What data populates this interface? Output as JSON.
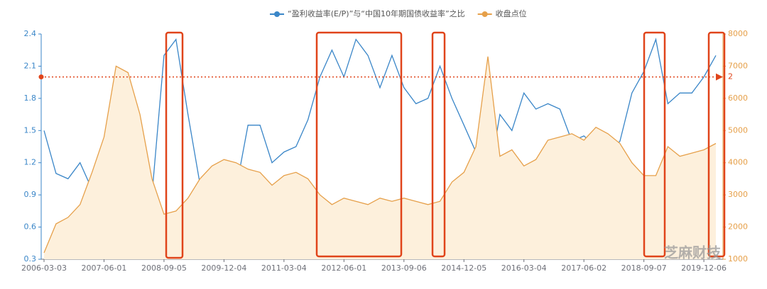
{
  "chart_data": {
    "type": "line",
    "categories": [
      "2006-03-03",
      null,
      null,
      null,
      null,
      "2007-06-01",
      null,
      null,
      null,
      null,
      "2008-09-05",
      null,
      null,
      null,
      null,
      "2009-12-04",
      null,
      null,
      null,
      null,
      "2011-03-04",
      null,
      null,
      null,
      null,
      "2012-06-01",
      null,
      null,
      null,
      null,
      "2013-09-06",
      null,
      null,
      null,
      null,
      "2014-12-05",
      null,
      null,
      null,
      null,
      "2016-03-04",
      null,
      null,
      null,
      null,
      "2017-06-02",
      null,
      null,
      null,
      null,
      "2018-09-07",
      null,
      null,
      null,
      null,
      "2019-12-06",
      null
    ],
    "series": [
      {
        "name": "“盈利收益率(E/P)”与“中国10年期国债收益率”之比",
        "color": "#3a86c8",
        "values": [
          1.5,
          1.1,
          1.05,
          1.2,
          0.95,
          0.75,
          0.55,
          0.45,
          0.5,
          0.9,
          2.2,
          2.35,
          1.65,
          1.0,
          0.8,
          0.85,
          0.95,
          1.55,
          1.55,
          1.2,
          1.3,
          1.35,
          1.6,
          2.0,
          2.25,
          2.0,
          2.35,
          2.2,
          1.9,
          2.2,
          1.9,
          1.75,
          1.8,
          2.1,
          1.8,
          1.55,
          1.3,
          1.0,
          1.65,
          1.5,
          1.85,
          1.7,
          1.75,
          1.7,
          1.4,
          1.45,
          1.35,
          1.3,
          1.4,
          1.85,
          2.05,
          2.35,
          1.75,
          1.85,
          1.85,
          2.0,
          2.2
        ]
      },
      {
        "name": "收盘点位",
        "color": "#e6a04a",
        "axis": "y2",
        "fill": "#fdf0dc",
        "values": [
          1200,
          2100,
          2300,
          2700,
          3700,
          4800,
          7000,
          6800,
          5500,
          3500,
          2400,
          2500,
          2900,
          3500,
          3900,
          4100,
          4000,
          3800,
          3700,
          3300,
          3600,
          3700,
          3500,
          3000,
          2700,
          2900,
          2800,
          2700,
          2900,
          2800,
          2900,
          2800,
          2700,
          2800,
          3400,
          3700,
          4500,
          7300,
          4200,
          4400,
          3900,
          4100,
          4700,
          4800,
          4900,
          4700,
          5100,
          4900,
          4600,
          4000,
          3600,
          3600,
          4500,
          4200,
          4300,
          4400,
          4600
        ]
      }
    ],
    "ylim": [
      0.3,
      2.4
    ],
    "yticks": [
      0.3,
      0.6,
      0.9,
      1.2,
      1.5,
      1.8,
      2.1,
      2.4
    ],
    "y2lim": [
      1000,
      8000
    ],
    "y2ticks": [
      1000,
      2000,
      3000,
      4000,
      5000,
      6000,
      7000,
      8000
    ],
    "reference_line": {
      "value": 2,
      "label": "2",
      "color": "#e0441a"
    },
    "legend": "top",
    "watermark": "芝麻财技"
  }
}
